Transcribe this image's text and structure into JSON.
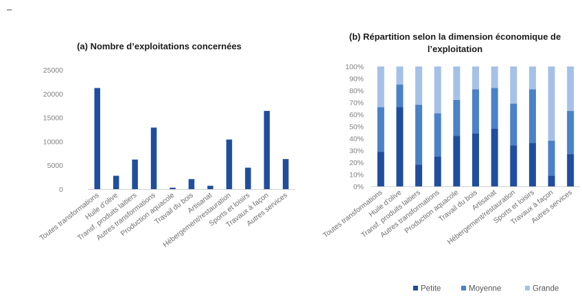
{
  "page": {
    "marker": "–"
  },
  "chart_data": [
    {
      "type": "bar",
      "title": "(a) Nombre d’exploitations concernées",
      "categories": [
        "Toutes transformations",
        "Huile d’olive",
        "Transf. produits laitiers",
        "Autres transformations",
        "Production aquacole",
        "Travail du bois",
        "Artisanat",
        "Hébergement/restauration",
        "Sports et loisirs",
        "Travaux à façon",
        "Autres services"
      ],
      "values": [
        21200,
        2800,
        6200,
        12900,
        300,
        2100,
        700,
        10400,
        4500,
        16400,
        6300
      ],
      "ylim": [
        0,
        25000
      ],
      "yticks": [
        "0",
        "5000",
        "10000",
        "15000",
        "20000",
        "25000"
      ],
      "grid": false,
      "colors": {
        "bar": "#1f4e9e"
      }
    },
    {
      "type": "bar",
      "stacked": true,
      "title": [
        "(b) Répartition selon la dimension économique de",
        "l’exploitation"
      ],
      "categories": [
        "Toutes transformations",
        "Huile d’olive",
        "Transf. produits laitiers",
        "Autres transformations",
        "Production aquacole",
        "Travail du bois",
        "Artisanat",
        "Hébergement/restauration",
        "Sports et loisirs",
        "Travaux à façon",
        "Autres services"
      ],
      "series": [
        {
          "name": "Petite",
          "color": "#1f4e9e",
          "values": [
            29,
            66,
            18,
            25,
            42,
            44,
            48,
            34,
            36,
            9,
            27
          ]
        },
        {
          "name": "Moyenne",
          "color": "#4a81c8",
          "values": [
            37,
            19,
            50,
            36,
            30,
            37,
            34,
            35,
            45,
            29,
            36
          ]
        },
        {
          "name": "Grande",
          "color": "#a5c1e8",
          "values": [
            34,
            15,
            32,
            39,
            28,
            19,
            18,
            31,
            19,
            62,
            37
          ]
        }
      ],
      "ylim": [
        0,
        100
      ],
      "yticks": [
        "0%",
        "10%",
        "20%",
        "30%",
        "40%",
        "50%",
        "60%",
        "70%",
        "80%",
        "90%",
        "100%"
      ],
      "legend_position": "bottom",
      "grid": false
    }
  ]
}
